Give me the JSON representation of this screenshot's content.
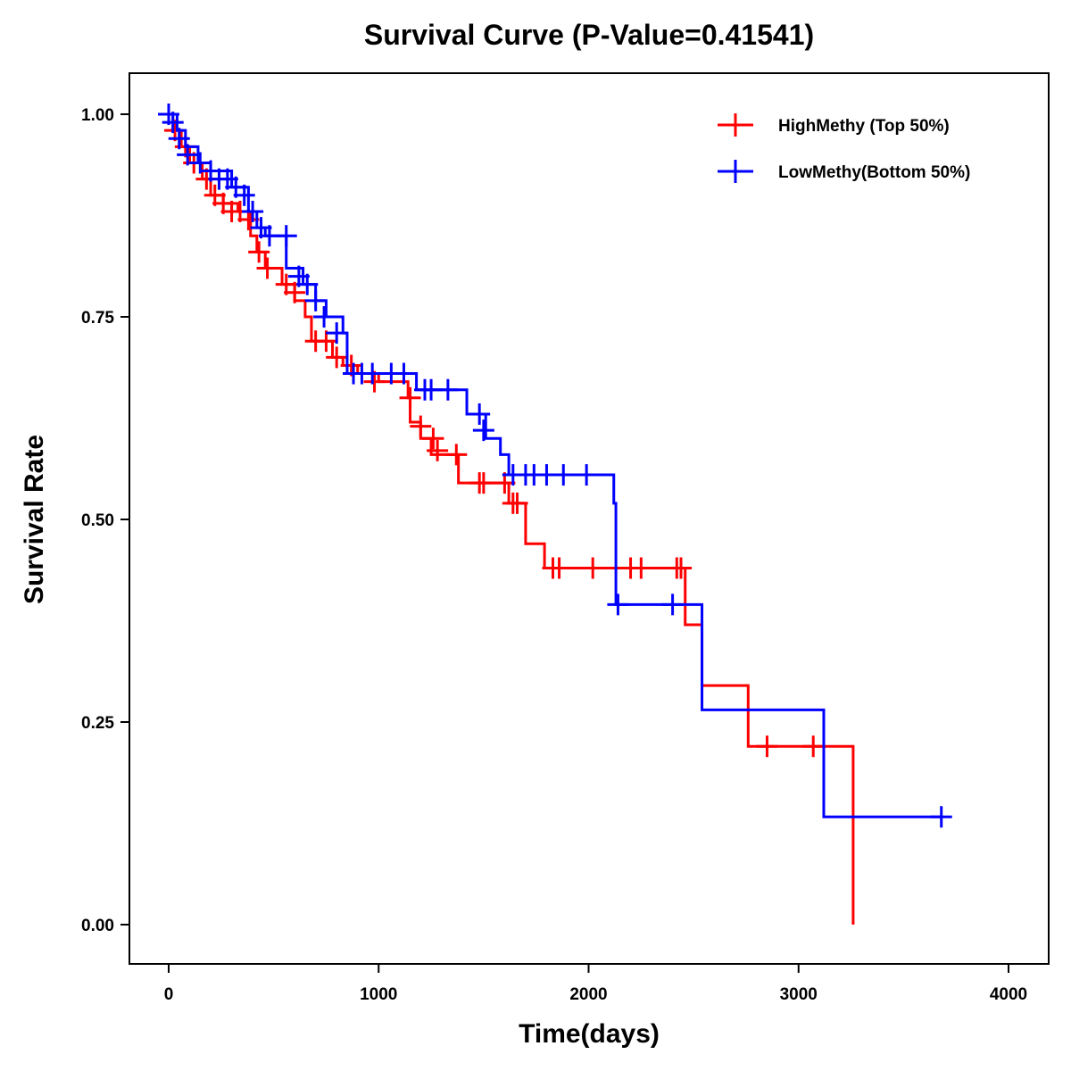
{
  "chart_data": {
    "type": "line",
    "subtype": "kaplan-meier",
    "title": "Survival Curve (P-Value=0.41541)",
    "xlabel": "Time(days)",
    "ylabel": "Survival Rate",
    "xlim": [
      -200,
      4200
    ],
    "ylim": [
      -0.05,
      1.05
    ],
    "xticks": [
      0,
      1000,
      2000,
      3000,
      4000
    ],
    "xtick_labels": [
      "0",
      "1000",
      "2000",
      "3000",
      "4000"
    ],
    "yticks": [
      0,
      0.25,
      0.5,
      0.75,
      1.0
    ],
    "ytick_labels": [
      "0.00",
      "0.25",
      "0.50",
      "0.75",
      "1.00"
    ],
    "grid": false,
    "legend_position": "top-right",
    "series": [
      {
        "name": "HighMethy (Top 50%)",
        "color": "#ff0000",
        "steps": [
          [
            0,
            1.0
          ],
          [
            20,
            0.98
          ],
          [
            60,
            0.96
          ],
          [
            100,
            0.94
          ],
          [
            160,
            0.92
          ],
          [
            200,
            0.9
          ],
          [
            260,
            0.89
          ],
          [
            330,
            0.88
          ],
          [
            390,
            0.85
          ],
          [
            420,
            0.83
          ],
          [
            460,
            0.81
          ],
          [
            540,
            0.79
          ],
          [
            600,
            0.77
          ],
          [
            650,
            0.75
          ],
          [
            680,
            0.72
          ],
          [
            780,
            0.7
          ],
          [
            830,
            0.69
          ],
          [
            900,
            0.68
          ],
          [
            1000,
            0.67
          ],
          [
            1140,
            0.65
          ],
          [
            1150,
            0.62
          ],
          [
            1200,
            0.6
          ],
          [
            1250,
            0.58
          ],
          [
            1380,
            0.545
          ],
          [
            1620,
            0.52
          ],
          [
            1700,
            0.47
          ],
          [
            1790,
            0.44
          ],
          [
            2460,
            0.37
          ],
          [
            2540,
            0.295
          ],
          [
            2760,
            0.22
          ],
          [
            3260,
            0.0
          ]
        ],
        "censors": [
          [
            30,
            0.98
          ],
          [
            80,
            0.96
          ],
          [
            120,
            0.94
          ],
          [
            180,
            0.92
          ],
          [
            220,
            0.9
          ],
          [
            260,
            0.89
          ],
          [
            300,
            0.88
          ],
          [
            340,
            0.88
          ],
          [
            380,
            0.87
          ],
          [
            430,
            0.83
          ],
          [
            470,
            0.81
          ],
          [
            560,
            0.79
          ],
          [
            600,
            0.78
          ],
          [
            700,
            0.72
          ],
          [
            750,
            0.72
          ],
          [
            800,
            0.7
          ],
          [
            870,
            0.69
          ],
          [
            980,
            0.67
          ],
          [
            1150,
            0.65
          ],
          [
            1200,
            0.615
          ],
          [
            1260,
            0.6
          ],
          [
            1280,
            0.585
          ],
          [
            1370,
            0.58
          ],
          [
            1480,
            0.545
          ],
          [
            1500,
            0.545
          ],
          [
            1600,
            0.545
          ],
          [
            1640,
            0.52
          ],
          [
            1660,
            0.52
          ],
          [
            1830,
            0.44
          ],
          [
            1860,
            0.44
          ],
          [
            2020,
            0.44
          ],
          [
            2200,
            0.44
          ],
          [
            2250,
            0.44
          ],
          [
            2420,
            0.44
          ],
          [
            2440,
            0.44
          ],
          [
            2850,
            0.22
          ],
          [
            3070,
            0.22
          ]
        ]
      },
      {
        "name": "LowMethy(Bottom 50%)",
        "color": "#0000ff",
        "steps": [
          [
            0,
            1.0
          ],
          [
            40,
            0.98
          ],
          [
            80,
            0.96
          ],
          [
            140,
            0.94
          ],
          [
            200,
            0.93
          ],
          [
            300,
            0.91
          ],
          [
            380,
            0.88
          ],
          [
            420,
            0.86
          ],
          [
            460,
            0.85
          ],
          [
            560,
            0.81
          ],
          [
            640,
            0.79
          ],
          [
            700,
            0.77
          ],
          [
            750,
            0.75
          ],
          [
            830,
            0.73
          ],
          [
            850,
            0.68
          ],
          [
            1180,
            0.66
          ],
          [
            1420,
            0.63
          ],
          [
            1510,
            0.6
          ],
          [
            1580,
            0.58
          ],
          [
            1620,
            0.555
          ],
          [
            2120,
            0.52
          ],
          [
            2130,
            0.395
          ],
          [
            2540,
            0.265
          ],
          [
            3120,
            0.133
          ]
        ],
        "censors": [
          [
            0,
            1.0
          ],
          [
            20,
            0.99
          ],
          [
            50,
            0.97
          ],
          [
            90,
            0.95
          ],
          [
            150,
            0.94
          ],
          [
            200,
            0.93
          ],
          [
            240,
            0.92
          ],
          [
            280,
            0.92
          ],
          [
            320,
            0.91
          ],
          [
            360,
            0.9
          ],
          [
            400,
            0.88
          ],
          [
            440,
            0.86
          ],
          [
            480,
            0.85
          ],
          [
            560,
            0.85
          ],
          [
            620,
            0.8
          ],
          [
            660,
            0.79
          ],
          [
            700,
            0.77
          ],
          [
            740,
            0.75
          ],
          [
            800,
            0.73
          ],
          [
            880,
            0.68
          ],
          [
            920,
            0.68
          ],
          [
            970,
            0.68
          ],
          [
            1060,
            0.68
          ],
          [
            1120,
            0.68
          ],
          [
            1220,
            0.66
          ],
          [
            1250,
            0.66
          ],
          [
            1330,
            0.66
          ],
          [
            1480,
            0.63
          ],
          [
            1500,
            0.61
          ],
          [
            1640,
            0.555
          ],
          [
            1700,
            0.555
          ],
          [
            1740,
            0.555
          ],
          [
            1800,
            0.555
          ],
          [
            1880,
            0.555
          ],
          [
            1990,
            0.555
          ],
          [
            2140,
            0.395
          ],
          [
            2400,
            0.395
          ],
          [
            3680,
            0.133
          ]
        ]
      }
    ]
  }
}
